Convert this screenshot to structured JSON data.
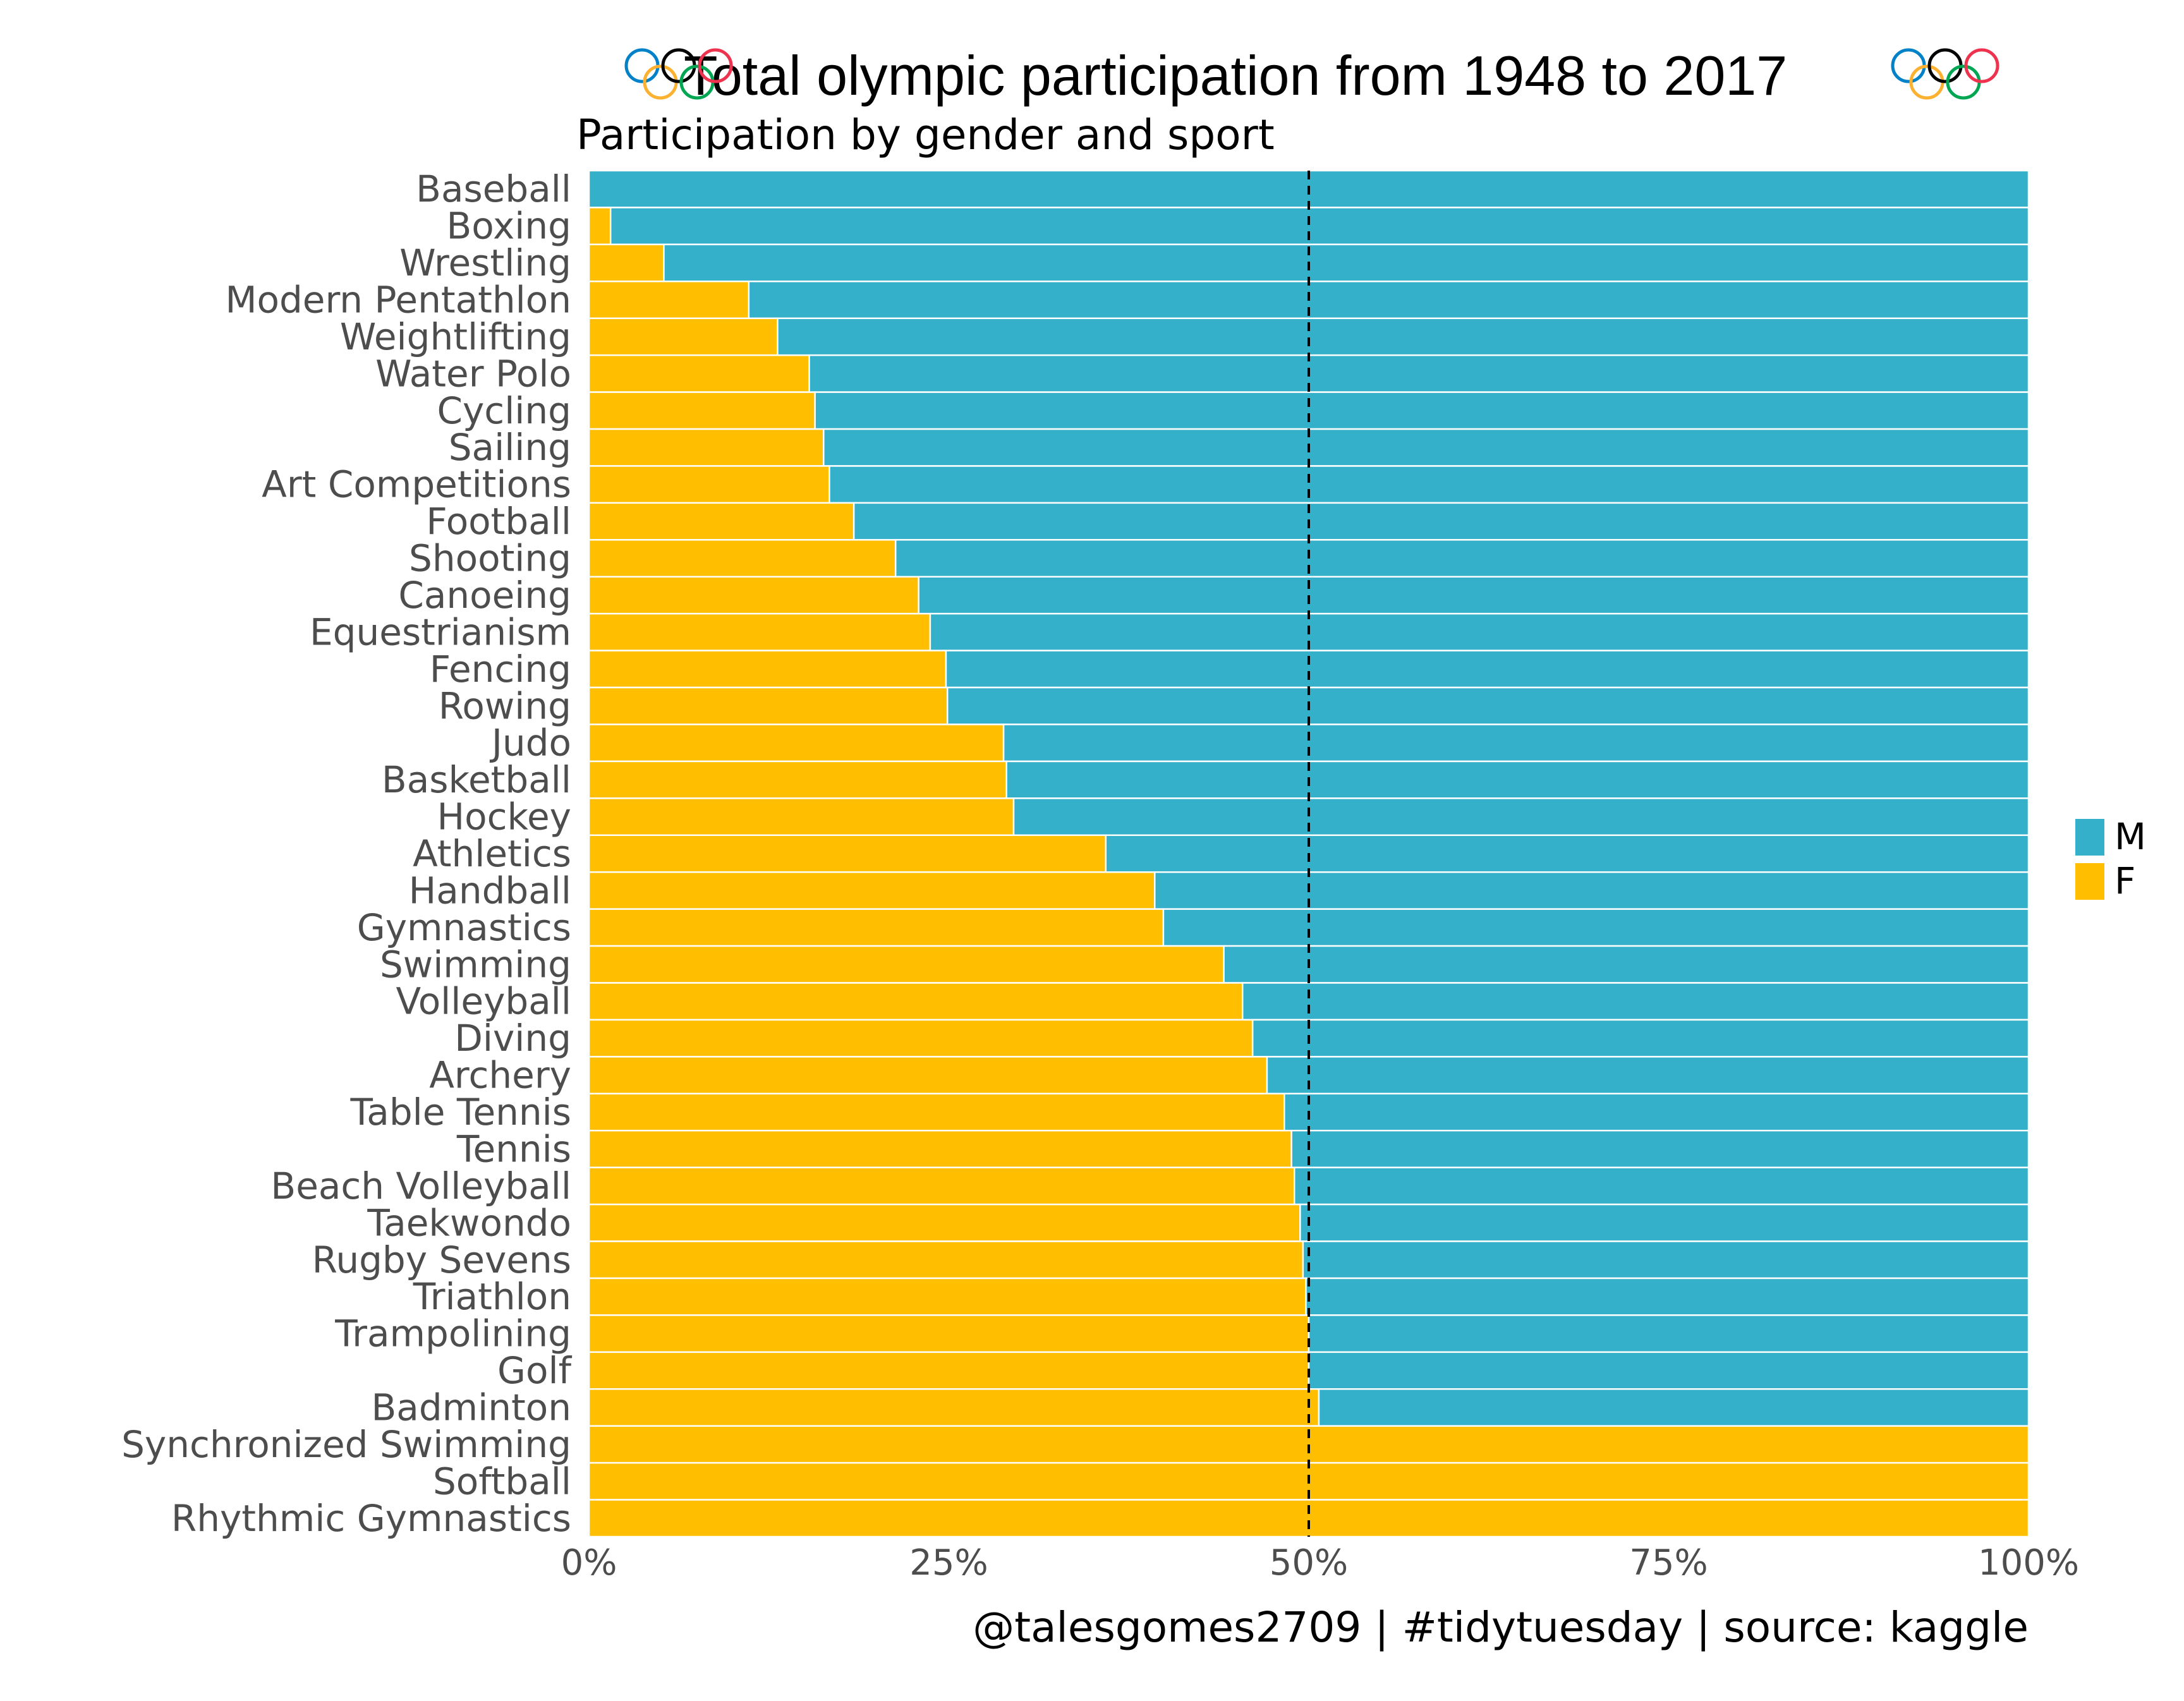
{
  "chart_data": {
    "type": "bar",
    "orientation": "horizontal",
    "stacked": "percent",
    "title": "Total olympic participation from 1948 to 2017",
    "subtitle": "Participation by gender and sport",
    "caption": "@talesgomes2709 | #tidytuesday | source: kaggle",
    "xlim": [
      0,
      1
    ],
    "x_ticks": [
      "0%",
      "25%",
      "50%",
      "75%",
      "100%"
    ],
    "reference_line": {
      "x": 0.5,
      "style": "dashed"
    },
    "grid": false,
    "legend_position": "right",
    "categories": [
      "Baseball",
      "Boxing",
      "Wrestling",
      "Modern Pentathlon",
      "Weightlifting",
      "Water Polo",
      "Cycling",
      "Sailing",
      "Art Competitions",
      "Football",
      "Shooting",
      "Canoeing",
      "Equestrianism",
      "Fencing",
      "Rowing",
      "Judo",
      "Basketball",
      "Hockey",
      "Athletics",
      "Handball",
      "Gymnastics",
      "Swimming",
      "Volleyball",
      "Diving",
      "Archery",
      "Table Tennis",
      "Tennis",
      "Beach Volleyball",
      "Taekwondo",
      "Rugby Sevens",
      "Triathlon",
      "Trampolining",
      "Golf",
      "Badminton",
      "Synchronized Swimming",
      "Softball",
      "Rhythmic Gymnastics"
    ],
    "series": [
      {
        "name": "F",
        "color": "#FFBF00",
        "values": [
          0.0,
          0.015,
          0.052,
          0.111,
          0.131,
          0.153,
          0.157,
          0.163,
          0.167,
          0.184,
          0.213,
          0.229,
          0.237,
          0.248,
          0.249,
          0.288,
          0.29,
          0.295,
          0.359,
          0.393,
          0.399,
          0.441,
          0.454,
          0.461,
          0.471,
          0.483,
          0.488,
          0.49,
          0.494,
          0.496,
          0.498,
          0.5,
          0.5,
          0.507,
          1.0,
          1.0,
          1.0
        ]
      },
      {
        "name": "M",
        "color": "#34B0CA",
        "values": [
          1.0,
          0.985,
          0.948,
          0.889,
          0.869,
          0.847,
          0.843,
          0.837,
          0.833,
          0.816,
          0.787,
          0.771,
          0.763,
          0.752,
          0.751,
          0.712,
          0.71,
          0.705,
          0.641,
          0.607,
          0.601,
          0.559,
          0.546,
          0.539,
          0.529,
          0.517,
          0.512,
          0.51,
          0.506,
          0.504,
          0.502,
          0.5,
          0.5,
          0.493,
          0.0,
          0.0,
          0.0
        ]
      }
    ],
    "legend": [
      {
        "label": "M",
        "color": "#34B0CA"
      },
      {
        "label": "F",
        "color": "#FFBF00"
      }
    ]
  },
  "ring_colors": [
    "#0081C8",
    "#FCB131",
    "#000000",
    "#00A651",
    "#EE334E"
  ]
}
